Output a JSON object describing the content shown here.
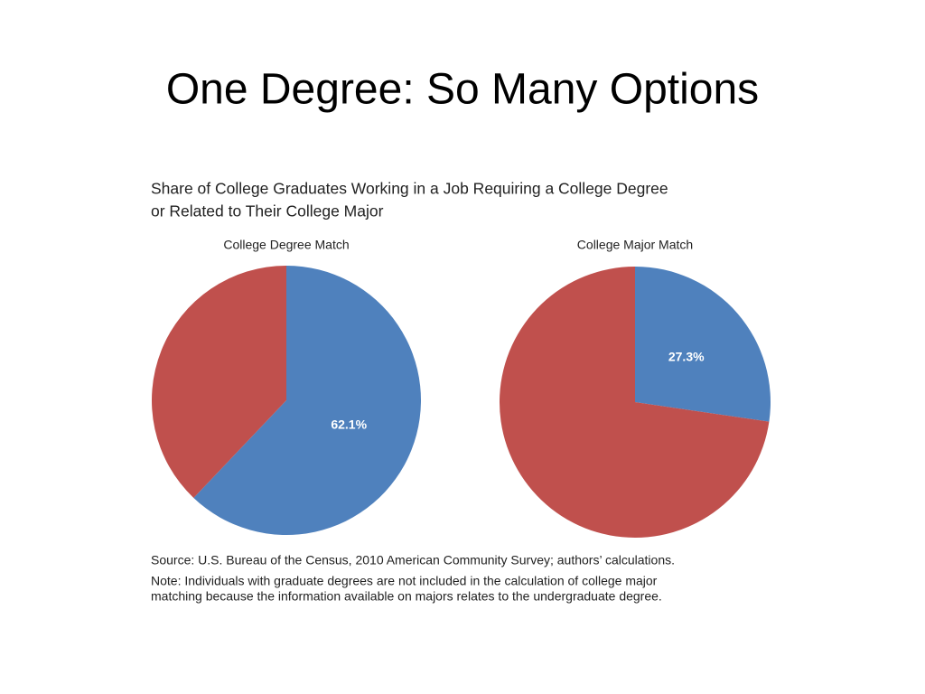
{
  "slide_title": "One Degree: So Many Options",
  "figure": {
    "title_lines": [
      "Share of College Graduates Working in a Job Requiring a College Degree",
      "or Related to Their College Major"
    ],
    "source": "Source: U.S. Bureau of the Census, 2010 American Community Survey; authors’ calculations.",
    "note_lines": [
      "Note: Individuals with graduate degrees are not included in the calculation of college major",
      "matching because the information available on majors relates to the undergraduate degree."
    ]
  },
  "chart_data": [
    {
      "type": "pie",
      "title": "College Degree Match",
      "values": [
        62.1,
        37.9
      ],
      "value_labels": [
        "62.1%",
        null
      ],
      "colors": [
        "#4f81bd",
        "#c0504d"
      ]
    },
    {
      "type": "pie",
      "title": "College Major Match",
      "values": [
        27.3,
        72.7
      ],
      "value_labels": [
        "27.3%",
        null
      ],
      "colors": [
        "#4f81bd",
        "#c0504d"
      ]
    }
  ]
}
